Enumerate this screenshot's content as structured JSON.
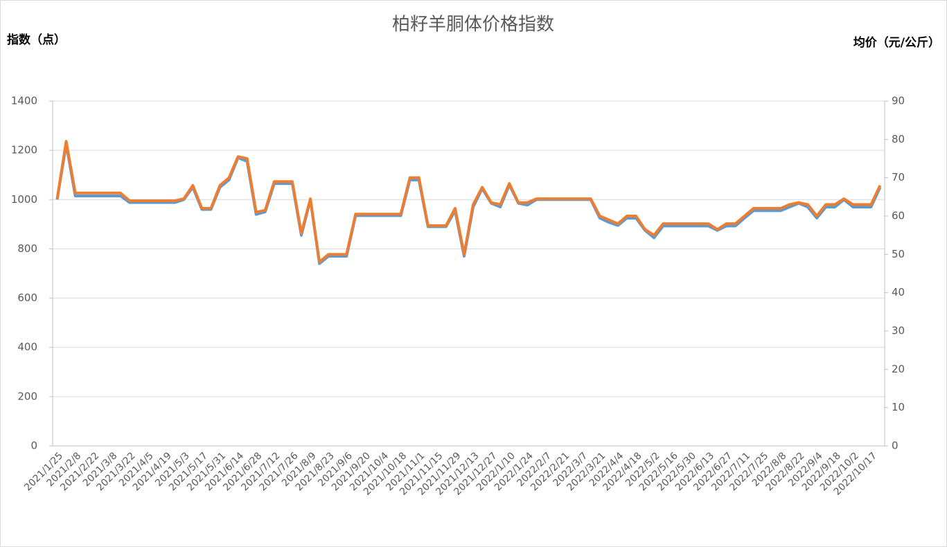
{
  "chart_data": {
    "type": "line",
    "title": "柏籽羊胴体价格指数",
    "y_label": "指数（点）",
    "y2_label": "均价（元/公斤）",
    "categories": [
      "2021/1/25",
      null,
      "2021/2/8",
      null,
      "2021/2/22",
      null,
      "2021/3/8",
      null,
      "2021/3/22",
      null,
      "2021/4/5",
      null,
      "2021/4/19",
      null,
      "2021/5/3",
      null,
      "2021/5/17",
      null,
      "2021/5/31",
      null,
      "2021/6/14",
      null,
      "2021/6/28",
      null,
      "2021/7/12",
      null,
      "2021/7/26",
      null,
      "2021/8/9",
      null,
      "2021/8/23",
      null,
      "2021/9/6",
      null,
      "2021/9/20",
      null,
      "2021/10/4",
      null,
      "2021/10/18",
      null,
      "2021/11/1",
      null,
      "2021/11/15",
      null,
      "2021/11/29",
      null,
      "2021/12/13",
      null,
      "2021/12/27",
      null,
      "2022/1/10",
      null,
      "2022/1/24",
      null,
      "2022/2/7",
      null,
      "2022/2/21",
      null,
      "2022/3/7",
      null,
      "2022/3/21",
      null,
      "2022/4/4",
      null,
      "2022/4/18",
      null,
      "2022/5/2",
      null,
      "2022/5/16",
      null,
      "2022/5/30",
      null,
      "2022/6/13",
      null,
      "2022/6/27",
      null,
      "2022/7/11",
      null,
      "2022/7/25",
      null,
      "2022/8/8",
      null,
      "2022/8/22",
      null,
      "2022/9/4",
      null,
      "2022/9/18",
      null,
      "2022/10/2",
      null,
      "2022/10/17",
      null
    ],
    "series": [
      {
        "name": "指数",
        "color": "#5b9bd5",
        "axis": "y",
        "values": [
          1000,
          1225,
          1015,
          1015,
          1015,
          1015,
          1015,
          1015,
          988,
          988,
          988,
          988,
          988,
          988,
          1000,
          1050,
          960,
          960,
          1050,
          1080,
          1170,
          1155,
          940,
          950,
          1065,
          1065,
          1065,
          855,
          1000,
          740,
          770,
          770,
          770,
          935,
          935,
          935,
          935,
          935,
          935,
          1080,
          1080,
          890,
          890,
          890,
          955,
          770,
          970,
          1045,
          985,
          970,
          1060,
          985,
          978,
          1000,
          1000,
          1000,
          1000,
          1000,
          1000,
          1000,
          925,
          908,
          895,
          925,
          925,
          875,
          845,
          893,
          893,
          893,
          893,
          893,
          893,
          875,
          893,
          893,
          925,
          955,
          955,
          955,
          955,
          970,
          985,
          970,
          925,
          970,
          970,
          1000,
          970,
          970,
          970,
          1050
        ]
      },
      {
        "name": "均价",
        "color": "#ed7d31",
        "axis": "y2",
        "values": [
          64.5,
          79.5,
          66,
          66,
          66,
          66,
          66,
          66,
          64,
          64,
          64,
          64,
          64,
          64,
          64.5,
          68,
          62,
          62,
          68,
          70,
          75.5,
          75,
          61,
          61.5,
          69,
          69,
          69,
          55.5,
          64.5,
          48,
          50,
          50,
          50,
          60.5,
          60.5,
          60.5,
          60.5,
          60.5,
          60.5,
          70,
          70,
          57.5,
          57.5,
          57.5,
          62,
          50,
          63,
          67.5,
          63.5,
          63,
          68.5,
          63.5,
          63.5,
          64.5,
          64.5,
          64.5,
          64.5,
          64.5,
          64.5,
          64.5,
          60,
          59,
          58,
          60,
          60,
          56.5,
          55,
          58,
          58,
          58,
          58,
          58,
          58,
          56.5,
          58,
          58,
          60,
          62,
          62,
          62,
          62,
          63,
          63.5,
          63,
          60,
          63,
          63,
          64.5,
          63,
          63,
          63,
          68
        ]
      }
    ],
    "ylim": [
      0,
      1400
    ],
    "yticks": [
      0,
      200,
      400,
      600,
      800,
      1000,
      1200,
      1400
    ],
    "y2lim": [
      0,
      90
    ],
    "y2ticks": [
      0,
      10,
      20,
      30,
      40,
      50,
      60,
      70,
      80,
      90
    ],
    "grid": true
  }
}
